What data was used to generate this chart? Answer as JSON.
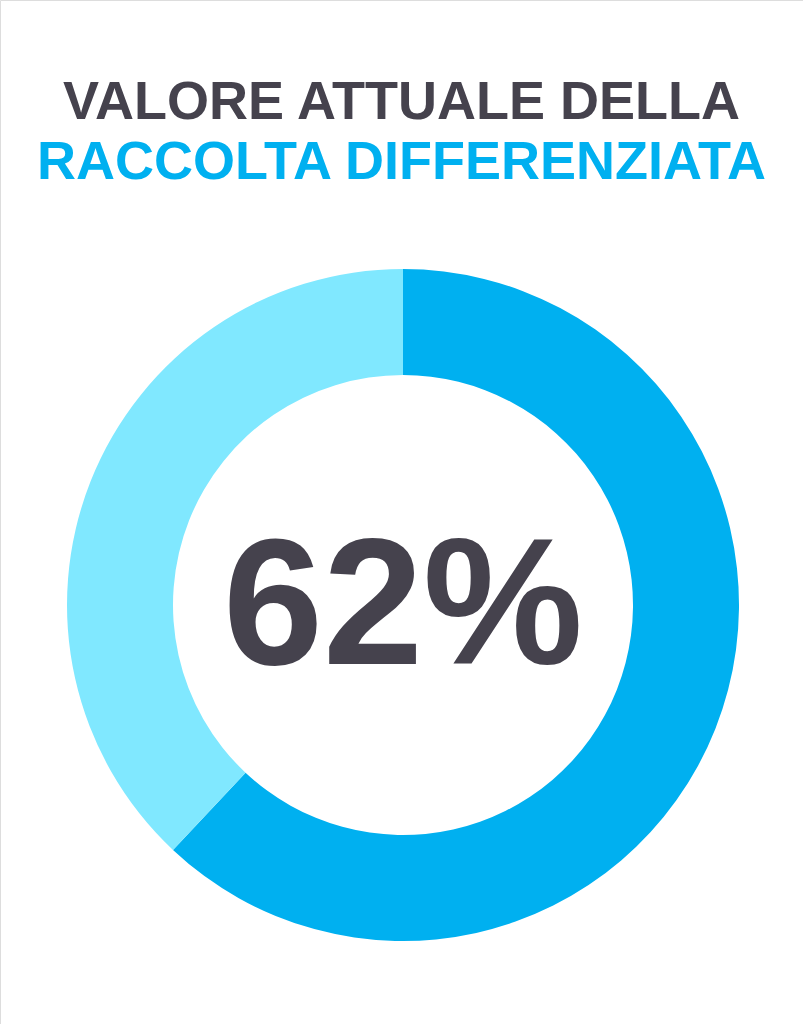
{
  "chart_data": {
    "type": "donut",
    "title": "VALORE ATTUALE DELLA",
    "subtitle": "RACCOLTA DIFFERENZIATA",
    "categories": [
      null,
      null
    ],
    "values": [
      62,
      38
    ],
    "colors": [
      "#00b0f0",
      "#80e8ff"
    ],
    "value_labels": [
      "62%",
      null
    ]
  }
}
